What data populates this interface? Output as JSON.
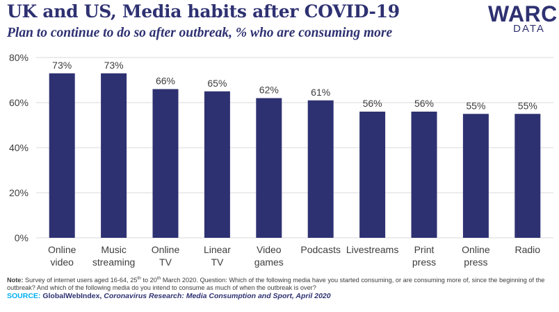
{
  "header": {
    "title": "UK and US, Media habits after COVID-19",
    "subtitle": "Plan to continue to do so after outbreak, % who are consuming more"
  },
  "logo": {
    "main": "WARC",
    "sub": "DATA"
  },
  "chart_data": {
    "type": "bar",
    "categories": [
      [
        "Online",
        "video"
      ],
      [
        "Music",
        "streaming"
      ],
      [
        "Online",
        "TV"
      ],
      [
        "Linear",
        "TV"
      ],
      [
        "Video",
        "games"
      ],
      [
        "Podcasts"
      ],
      [
        "Livestreams"
      ],
      [
        "Print",
        "press"
      ],
      [
        "Online",
        "press"
      ],
      [
        "Radio"
      ]
    ],
    "values": [
      73,
      73,
      66,
      65,
      62,
      61,
      56,
      56,
      55,
      55
    ],
    "value_labels": [
      "73%",
      "73%",
      "66%",
      "65%",
      "62%",
      "61%",
      "56%",
      "56%",
      "55%",
      "55%"
    ],
    "yticks": [
      0,
      20,
      40,
      60,
      80
    ],
    "ytick_labels": [
      "0%",
      "20%",
      "40%",
      "60%",
      "80%"
    ],
    "ylim": [
      0,
      80
    ],
    "grid": true,
    "bar_color": "#2e3171",
    "grid_color": "#d9d9d9",
    "text_color": "#3c3c3c"
  },
  "footer": {
    "note_label": "Note:",
    "note_text": "Survey of internet users aged 16-64, 25th to 20th March 2020. Question: Which of the following media have you started consuming, or are consuming more of, since the beginning of the outbreak? And which of the following media do you intend to consume as much of when the outbreak is over?",
    "source_label": "SOURCE:",
    "source_org": "GlobalWebIndex,",
    "source_title": "Coronavirus Research: Media Consumption and Sport, April 2020"
  }
}
